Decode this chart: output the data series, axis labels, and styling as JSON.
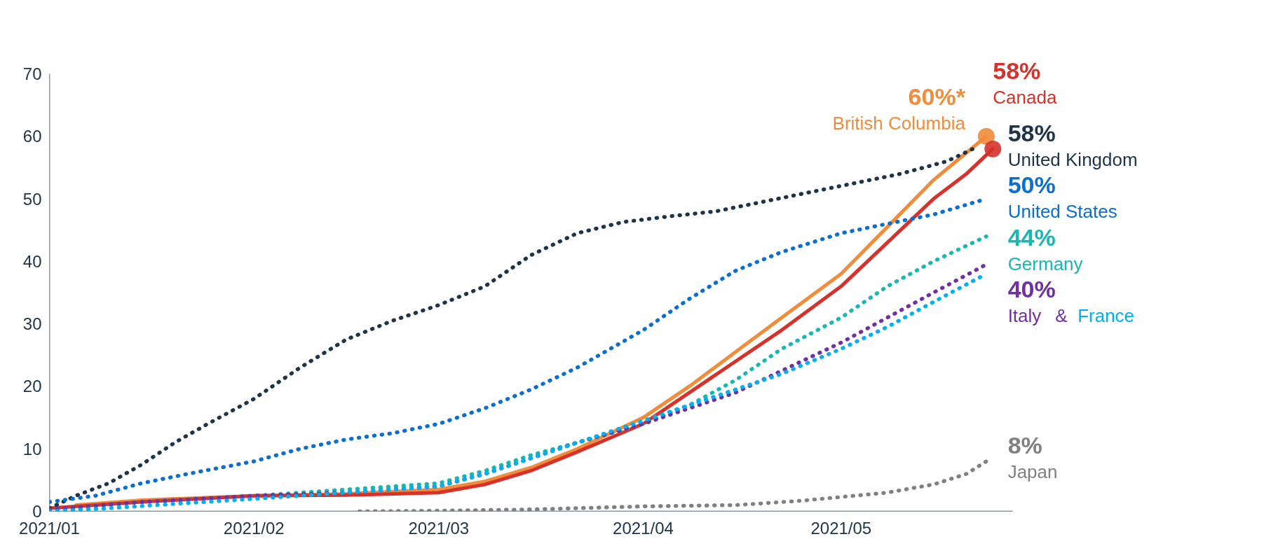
{
  "chart_data": {
    "type": "line",
    "xlim": [
      "2021-01-01",
      "2021-05-27"
    ],
    "ylim": [
      0,
      70
    ],
    "xticks": [
      {
        "value": "2021-01-01",
        "label": "2021/01"
      },
      {
        "value": "2021-02-01",
        "label": "2021/02"
      },
      {
        "value": "2021-03-01",
        "label": "2021/03"
      },
      {
        "value": "2021-04-01",
        "label": "2021/04"
      },
      {
        "value": "2021-05-01",
        "label": "2021/05"
      }
    ],
    "yticks": [
      0,
      10,
      20,
      30,
      40,
      50,
      60,
      70
    ],
    "grid": false,
    "annotations": [
      "&"
    ],
    "series": [
      {
        "name": "British Columbia",
        "color": "#f08c3a",
        "line_style": "solid",
        "x": [
          "2021-01-05",
          "2021-01-15",
          "2021-02-01",
          "2021-02-15",
          "2021-03-01",
          "2021-03-08",
          "2021-03-15",
          "2021-03-22",
          "2021-04-01",
          "2021-04-08",
          "2021-04-15",
          "2021-04-22",
          "2021-05-01",
          "2021-05-08",
          "2021-05-15",
          "2021-05-23"
        ],
        "values": [
          1,
          1.8,
          2.5,
          2.8,
          3.5,
          4.8,
          7,
          10,
          15,
          20,
          25.5,
          31,
          38,
          45.5,
          53,
          60
        ],
        "value_labels": [
          null,
          null,
          null,
          null,
          null,
          null,
          null,
          null,
          null,
          null,
          null,
          null,
          null,
          null,
          null,
          "60%*"
        ]
      },
      {
        "name": "Canada",
        "color": "#d7312c",
        "line_style": "solid",
        "x": [
          "2021-01-01",
          "2021-01-15",
          "2021-02-01",
          "2021-02-15",
          "2021-03-01",
          "2021-03-08",
          "2021-03-15",
          "2021-03-22",
          "2021-04-01",
          "2021-04-08",
          "2021-04-15",
          "2021-04-22",
          "2021-05-01",
          "2021-05-08",
          "2021-05-15",
          "2021-05-20",
          "2021-05-24"
        ],
        "values": [
          0.5,
          1.5,
          2.5,
          2.6,
          3,
          4.3,
          6.5,
          9.5,
          14,
          19,
          24,
          29,
          36,
          43,
          50,
          54,
          58
        ],
        "value_labels": [
          null,
          null,
          null,
          null,
          null,
          null,
          null,
          null,
          null,
          null,
          null,
          null,
          null,
          null,
          null,
          null,
          "58%"
        ]
      },
      {
        "name": "United Kingdom",
        "color": "#1f3347",
        "line_style": "dotted",
        "x": [
          "2021-01-01",
          "2021-01-05",
          "2021-01-10",
          "2021-01-15",
          "2021-01-20",
          "2021-01-25",
          "2021-02-01",
          "2021-02-08",
          "2021-02-15",
          "2021-02-22",
          "2021-03-01",
          "2021-03-08",
          "2021-03-15",
          "2021-03-22",
          "2021-03-29",
          "2021-04-05",
          "2021-04-12",
          "2021-04-19",
          "2021-04-26",
          "2021-05-03",
          "2021-05-10",
          "2021-05-17",
          "2021-05-21"
        ],
        "values": [
          0.5,
          2.5,
          4.5,
          7.5,
          11,
          14,
          18,
          23,
          27.5,
          30.5,
          33,
          36,
          41,
          44.5,
          46.3,
          47.2,
          48,
          49.5,
          51,
          52.5,
          54,
          56,
          58
        ],
        "value_labels": [
          null,
          null,
          null,
          null,
          null,
          null,
          null,
          null,
          null,
          null,
          null,
          null,
          null,
          null,
          null,
          null,
          null,
          null,
          null,
          null,
          null,
          null,
          "58%"
        ]
      },
      {
        "name": "United States",
        "color": "#0a6fcf",
        "line_style": "dotted",
        "x": [
          "2021-01-01",
          "2021-01-08",
          "2021-01-15",
          "2021-01-22",
          "2021-02-01",
          "2021-02-08",
          "2021-02-15",
          "2021-02-22",
          "2021-03-01",
          "2021-03-08",
          "2021-03-15",
          "2021-03-22",
          "2021-04-01",
          "2021-04-08",
          "2021-04-15",
          "2021-04-22",
          "2021-05-01",
          "2021-05-08",
          "2021-05-15",
          "2021-05-23"
        ],
        "values": [
          1.5,
          2.5,
          4.5,
          6,
          8,
          10,
          11.5,
          12.5,
          14,
          16.5,
          19.5,
          23,
          29,
          34,
          38.5,
          41.5,
          44.5,
          46,
          47.5,
          50
        ],
        "value_labels": [
          null,
          null,
          null,
          null,
          null,
          null,
          null,
          null,
          null,
          null,
          null,
          null,
          null,
          null,
          null,
          null,
          null,
          null,
          null,
          "50%"
        ]
      },
      {
        "name": "Germany",
        "color": "#17b8b0",
        "line_style": "dotted",
        "x": [
          "2021-01-01",
          "2021-01-15",
          "2021-02-01",
          "2021-02-15",
          "2021-03-01",
          "2021-03-08",
          "2021-03-15",
          "2021-03-22",
          "2021-04-01",
          "2021-04-08",
          "2021-04-15",
          "2021-04-22",
          "2021-05-01",
          "2021-05-08",
          "2021-05-15",
          "2021-05-23"
        ],
        "values": [
          0.3,
          1.5,
          2.5,
          3.5,
          4.5,
          6.5,
          9,
          11,
          14,
          17,
          21,
          26,
          31,
          36,
          40,
          44
        ],
        "value_labels": [
          null,
          null,
          null,
          null,
          null,
          null,
          null,
          null,
          null,
          null,
          null,
          null,
          null,
          null,
          null,
          "44%"
        ]
      },
      {
        "name": "Italy",
        "color": "#7030a0",
        "line_style": "dotted",
        "x": [
          "2021-01-01",
          "2021-01-15",
          "2021-02-01",
          "2021-02-15",
          "2021-03-01",
          "2021-03-08",
          "2021-03-15",
          "2021-03-22",
          "2021-04-01",
          "2021-04-08",
          "2021-04-15",
          "2021-04-22",
          "2021-05-01",
          "2021-05-08",
          "2021-05-15",
          "2021-05-23"
        ],
        "values": [
          0.3,
          1.5,
          2.5,
          3,
          4,
          6,
          8.5,
          11,
          14,
          16.5,
          19,
          22.5,
          27,
          31,
          35,
          39.5
        ],
        "value_labels": [
          null,
          null,
          null,
          null,
          null,
          null,
          null,
          null,
          null,
          null,
          null,
          null,
          null,
          null,
          null,
          "40%"
        ]
      },
      {
        "name": "France",
        "color": "#00b0f0",
        "line_style": "dotted",
        "x": [
          "2021-01-01",
          "2021-01-10",
          "2021-01-20",
          "2021-02-01",
          "2021-02-15",
          "2021-03-01",
          "2021-03-08",
          "2021-03-15",
          "2021-03-22",
          "2021-04-01",
          "2021-04-08",
          "2021-04-15",
          "2021-04-22",
          "2021-05-01",
          "2021-05-08",
          "2021-05-15",
          "2021-05-23"
        ],
        "values": [
          0,
          0.5,
          1.2,
          2,
          3,
          4,
          6,
          8.5,
          11,
          14.5,
          17,
          19.5,
          22,
          26,
          29.5,
          33.5,
          38
        ]
      },
      {
        "type": "scatter",
        "marker": "circle",
        "color": "#f08c3a",
        "x": [
          "2021-05-23"
        ],
        "values": [
          60
        ]
      },
      {
        "type": "scatter",
        "marker": "circle",
        "color": "#d7312c",
        "x": [
          "2021-05-24"
        ],
        "values": [
          58
        ]
      },
      {
        "name": "Japan",
        "color": "#808080",
        "line_style": "dotted",
        "x": [
          "2021-02-17",
          "2021-03-01",
          "2021-03-15",
          "2021-04-01",
          "2021-04-15",
          "2021-04-25",
          "2021-05-01",
          "2021-05-08",
          "2021-05-15",
          "2021-05-20",
          "2021-05-23"
        ],
        "values": [
          0,
          0.1,
          0.3,
          0.8,
          1,
          1.7,
          2.3,
          3,
          4.3,
          6,
          8
        ],
        "value_labels": [
          null,
          null,
          null,
          null,
          null,
          null,
          null,
          null,
          null,
          null,
          "8%"
        ]
      }
    ]
  }
}
